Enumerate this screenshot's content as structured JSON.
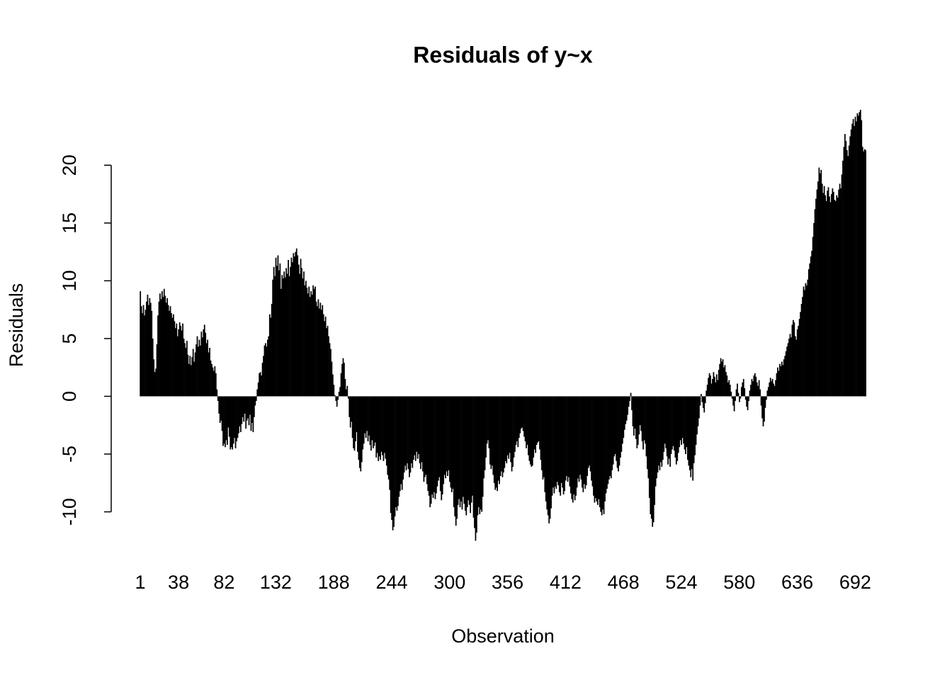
{
  "chart_data": {
    "type": "bar",
    "title": "Residuals of y~x",
    "x_label": "Observation",
    "y_label": "Residuals",
    "color": "#000000",
    "xlim": [
      0.5,
      702.5
    ],
    "xticks": [
      1,
      38,
      82,
      132,
      188,
      244,
      300,
      356,
      412,
      468,
      524,
      580,
      636,
      692
    ],
    "ylim": [
      -12.6,
      24.8
    ],
    "yticks": [
      -10,
      -5,
      0,
      5,
      10,
      15,
      20
    ],
    "x": [
      1,
      2,
      3,
      4,
      5,
      6,
      7,
      8,
      9,
      10,
      11,
      12,
      13,
      14,
      15,
      16,
      17,
      18,
      19,
      20,
      21,
      22,
      23,
      24,
      25,
      26,
      27,
      28,
      29,
      30,
      31,
      32,
      33,
      34,
      35,
      36,
      37,
      38,
      39,
      40,
      41,
      42,
      43,
      44,
      45,
      46,
      47,
      48,
      49,
      50,
      51,
      52,
      53,
      54,
      55,
      56,
      57,
      58,
      59,
      60,
      61,
      62,
      63,
      64,
      65,
      66,
      67,
      68,
      69,
      70,
      71,
      72,
      73,
      74,
      75,
      76,
      77,
      78,
      79,
      80,
      81,
      82,
      83,
      84,
      85,
      86,
      87,
      88,
      89,
      90,
      91,
      92,
      93,
      94,
      95,
      96,
      97,
      98,
      99,
      100,
      101,
      102,
      103,
      104,
      105,
      106,
      107,
      108,
      109,
      110,
      111,
      112,
      113,
      114,
      115,
      116,
      117,
      118,
      119,
      120,
      121,
      122,
      123,
      124,
      125,
      126,
      127,
      128,
      129,
      130,
      131,
      132,
      133,
      134,
      135,
      136,
      137,
      138,
      139,
      140,
      141,
      142,
      143,
      144,
      145,
      146,
      147,
      148,
      149,
      150,
      151,
      152,
      153,
      154,
      155,
      156,
      157,
      158,
      159,
      160,
      161,
      162,
      163,
      164,
      165,
      166,
      167,
      168,
      169,
      170,
      171,
      172,
      173,
      174,
      175,
      176,
      177,
      178,
      179,
      180,
      181,
      182,
      183,
      184,
      185,
      186,
      187,
      188,
      189,
      190,
      191,
      192,
      193,
      194,
      195,
      196,
      197,
      198,
      199,
      200,
      201,
      202,
      203,
      204,
      205,
      206,
      207,
      208,
      209,
      210,
      211,
      212,
      213,
      214,
      215,
      216,
      217,
      218,
      219,
      220,
      221,
      222,
      223,
      224,
      225,
      226,
      227,
      228,
      229,
      230,
      231,
      232,
      233,
      234,
      235,
      236,
      237,
      238,
      239,
      240,
      241,
      242,
      243,
      244,
      245,
      246,
      247,
      248,
      249,
      250,
      251,
      252,
      253,
      254,
      255,
      256,
      257,
      258,
      259,
      260,
      261,
      262,
      263,
      264,
      265,
      266,
      267,
      268,
      269,
      270,
      271,
      272,
      273,
      274,
      275,
      276,
      277,
      278,
      279,
      280,
      281,
      282,
      283,
      284,
      285,
      286,
      287,
      288,
      289,
      290,
      291,
      292,
      293,
      294,
      295,
      296,
      297,
      298,
      299,
      300,
      301,
      302,
      303,
      304,
      305,
      306,
      307,
      308,
      309,
      310,
      311,
      312,
      313,
      314,
      315,
      316,
      317,
      318,
      319,
      320,
      321,
      322,
      323,
      324,
      325,
      326,
      327,
      328,
      329,
      330,
      331,
      332,
      333,
      334,
      335,
      336,
      337,
      338,
      339,
      340,
      341,
      342,
      343,
      344,
      345,
      346,
      347,
      348,
      349,
      350,
      351,
      352,
      353,
      354,
      355,
      356,
      357,
      358,
      359,
      360,
      361,
      362,
      363,
      364,
      365,
      366,
      367,
      368,
      369,
      370,
      371,
      372,
      373,
      374,
      375,
      376,
      377,
      378,
      379,
      380,
      381,
      382,
      383,
      384,
      385,
      386,
      387,
      388,
      389,
      390,
      391,
      392,
      393,
      394,
      395,
      396,
      397,
      398,
      399,
      400,
      401,
      402,
      403,
      404,
      405,
      406,
      407,
      408,
      409,
      410,
      411,
      412,
      413,
      414,
      415,
      416,
      417,
      418,
      419,
      420,
      421,
      422,
      423,
      424,
      425,
      426,
      427,
      428,
      429,
      430,
      431,
      432,
      433,
      434,
      435,
      436,
      437,
      438,
      439,
      440,
      441,
      442,
      443,
      444,
      445,
      446,
      447,
      448,
      449,
      450,
      451,
      452,
      453,
      454,
      455,
      456,
      457,
      458,
      459,
      460,
      461,
      462,
      463,
      464,
      465,
      466,
      467,
      468,
      469,
      470,
      471,
      472,
      473,
      474,
      475,
      476,
      477,
      478,
      479,
      480,
      481,
      482,
      483,
      484,
      485,
      486,
      487,
      488,
      489,
      490,
      491,
      492,
      493,
      494,
      495,
      496,
      497,
      498,
      499,
      500,
      501,
      502,
      503,
      504,
      505,
      506,
      507,
      508,
      509,
      510,
      511,
      512,
      513,
      514,
      515,
      516,
      517,
      518,
      519,
      520,
      521,
      522,
      523,
      524,
      525,
      526,
      527,
      528,
      529,
      530,
      531,
      532,
      533,
      534,
      535,
      536,
      537,
      538,
      539,
      540,
      541,
      542,
      543,
      544,
      545,
      546,
      547,
      548,
      549,
      550,
      551,
      552,
      553,
      554,
      555,
      556,
      557,
      558,
      559,
      560,
      561,
      562,
      563,
      564,
      565,
      566,
      567,
      568,
      569,
      570,
      571,
      572,
      573,
      574,
      575,
      576,
      577,
      578,
      579,
      580,
      581,
      582,
      583,
      584,
      585,
      586,
      587,
      588,
      589,
      590,
      591,
      592,
      593,
      594,
      595,
      596,
      597,
      598,
      599,
      600,
      601,
      602,
      603,
      604,
      605,
      606,
      607,
      608,
      609,
      610,
      611,
      612,
      613,
      614,
      615,
      616,
      617,
      618,
      619,
      620,
      621,
      622,
      623,
      624,
      625,
      626,
      627,
      628,
      629,
      630,
      631,
      632,
      633,
      634,
      635,
      636,
      637,
      638,
      639,
      640,
      641,
      642,
      643,
      644,
      645,
      646,
      647,
      648,
      649,
      650,
      651,
      652,
      653,
      654,
      655,
      656,
      657,
      658,
      659,
      660,
      661,
      662,
      663,
      664,
      665,
      666,
      667,
      668,
      669,
      670,
      671,
      672,
      673,
      674,
      675,
      676,
      677,
      678,
      679,
      680,
      681,
      682,
      683,
      684,
      685,
      686,
      687,
      688,
      689,
      690,
      691,
      692,
      693,
      694,
      695,
      696,
      697,
      698,
      699,
      700,
      701,
      702
    ],
    "values": [
      9.1,
      7.8,
      7.2,
      7.9,
      7.0,
      7.5,
      8.2,
      8.8,
      7.9,
      8.5,
      8.1,
      7.4,
      5.0,
      3.2,
      2.1,
      2.4,
      4.5,
      7.0,
      8.2,
      8.9,
      8.4,
      9.1,
      8.6,
      9.3,
      8.7,
      8.1,
      8.5,
      7.9,
      7.4,
      7.8,
      7.2,
      6.8,
      7.1,
      6.5,
      5.9,
      6.3,
      5.2,
      5.8,
      6.4,
      6.1,
      5.7,
      6.3,
      5.0,
      4.6,
      4.2,
      4.8,
      3.6,
      2.8,
      3.5,
      2.7,
      3.4,
      4.1,
      3.0,
      3.8,
      4.5,
      5.2,
      4.3,
      4.9,
      4.4,
      5.6,
      5.1,
      5.8,
      6.2,
      5.5,
      4.6,
      4.9,
      3.8,
      4.2,
      3.1,
      2.8,
      2.5,
      2.2,
      2.6,
      2.0,
      0.6,
      -0.4,
      -1.5,
      -2.3,
      -2.1,
      -3.0,
      -4.3,
      -4.1,
      -4.4,
      -3.8,
      -4.2,
      -2.7,
      -3.5,
      -4.6,
      -4.4,
      -4.6,
      -4.1,
      -3.6,
      -4.5,
      -3.9,
      -3.6,
      -3.2,
      -2.6,
      -3.1,
      -2.4,
      -1.8,
      -2.2,
      -1.5,
      -2.8,
      -2.1,
      -1.9,
      -2.5,
      -1.6,
      -3.0,
      -2.3,
      -3.1,
      -1.8,
      -0.8,
      -0.4,
      0.6,
      1.2,
      2.0,
      2.1,
      1.8,
      2.9,
      3.5,
      4.4,
      4.6,
      4.3,
      4.9,
      5.2,
      7.1,
      6.8,
      8.0,
      10.1,
      11.2,
      10.4,
      12.0,
      11.3,
      12.2,
      10.9,
      11.5,
      9.3,
      10.5,
      10.2,
      10.8,
      10.3,
      11.1,
      10.6,
      11.8,
      10.4,
      11.2,
      12.0,
      11.6,
      12.4,
      12.1,
      12.5,
      12.8,
      12.2,
      11.4,
      10.6,
      11.9,
      11.1,
      10.2,
      10.8,
      9.6,
      10.0,
      9.4,
      8.9,
      9.5,
      8.6,
      9.1,
      8.8,
      9.6,
      9.3,
      9.5,
      8.2,
      7.8,
      8.4,
      7.6,
      8.1,
      7.5,
      7.9,
      7.1,
      6.5,
      6.9,
      5.9,
      6.1,
      5.2,
      4.6,
      4.1,
      3.0,
      1.9,
      1.0,
      0.1,
      -0.4,
      -0.9,
      -0.3,
      0.4,
      0.8,
      2.0,
      2.8,
      3.3,
      2.9,
      1.5,
      0.6,
      0.9,
      -0.2,
      -1.8,
      -2.7,
      -2.2,
      -3.6,
      -4.5,
      -4.7,
      -3.9,
      -3.1,
      -4.8,
      -5.5,
      -6.2,
      -6.5,
      -5.7,
      -4.6,
      -4.1,
      -3.2,
      -3.6,
      -3.0,
      -3.9,
      -3.4,
      -4.2,
      -4.7,
      -3.8,
      -4.5,
      -4.3,
      -4.0,
      -5.3,
      -4.9,
      -5.6,
      -5.2,
      -5.5,
      -4.8,
      -5.1,
      -5.6,
      -4.9,
      -5.4,
      -6.0,
      -6.8,
      -7.2,
      -8.1,
      -10.1,
      -10.7,
      -11.6,
      -11.3,
      -10.4,
      -9.6,
      -9.9,
      -9.5,
      -8.7,
      -8.2,
      -7.6,
      -8.1,
      -7.2,
      -6.6,
      -6.0,
      -6.4,
      -5.8,
      -6.3,
      -7.0,
      -6.6,
      -5.8,
      -6.2,
      -5.5,
      -5.1,
      -5.6,
      -4.8,
      -5.4,
      -5.0,
      -5.8,
      -6.3,
      -5.7,
      -6.5,
      -7.4,
      -7.0,
      -6.8,
      -7.6,
      -8.2,
      -8.6,
      -9.6,
      -9.3,
      -8.5,
      -8.8,
      -8.3,
      -8.9,
      -8.4,
      -7.8,
      -7.3,
      -7.0,
      -8.2,
      -9.0,
      -8.5,
      -7.6,
      -6.8,
      -7.1,
      -6.5,
      -6.9,
      -6.4,
      -7.4,
      -7.9,
      -8.3,
      -8.0,
      -9.6,
      -10.4,
      -11.2,
      -10.6,
      -9.4,
      -8.9,
      -9.6,
      -9.1,
      -9.8,
      -8.7,
      -9.3,
      -9.9,
      -10.3,
      -9.6,
      -9.0,
      -9.4,
      -10.1,
      -9.2,
      -8.6,
      -10.5,
      -11.4,
      -12.5,
      -11.8,
      -10.3,
      -9.6,
      -10.2,
      -9.8,
      -10.0,
      -8.7,
      -7.1,
      -6.4,
      -5.3,
      -4.1,
      -3.8,
      -4.5,
      -5.9,
      -6.3,
      -6.0,
      -6.8,
      -7.5,
      -8.1,
      -7.9,
      -8.2,
      -7.3,
      -7.6,
      -6.9,
      -6.5,
      -7.0,
      -6.6,
      -6.2,
      -5.6,
      -5.8,
      -5.1,
      -5.4,
      -4.9,
      -5.7,
      -6.5,
      -6.1,
      -5.3,
      -4.8,
      -4.2,
      -3.9,
      -4.4,
      -3.6,
      -3.2,
      -2.8,
      -2.7,
      -3.0,
      -3.5,
      -3.9,
      -4.5,
      -4.2,
      -5.1,
      -5.6,
      -5.9,
      -6.1,
      -6.0,
      -5.3,
      -4.6,
      -4.9,
      -4.2,
      -4.0,
      -3.9,
      -4.6,
      -5.5,
      -6.4,
      -7.2,
      -7.0,
      -8.3,
      -9.1,
      -9.8,
      -10.3,
      -11.0,
      -10.6,
      -9.7,
      -8.6,
      -7.9,
      -8.4,
      -7.8,
      -8.0,
      -7.4,
      -7.7,
      -8.3,
      -8.6,
      -7.5,
      -7.9,
      -8.5,
      -8.2,
      -7.3,
      -6.9,
      -7.4,
      -7.0,
      -7.8,
      -8.4,
      -8.9,
      -9.2,
      -8.5,
      -9.0,
      -8.6,
      -7.9,
      -7.1,
      -7.4,
      -6.8,
      -7.2,
      -7.9,
      -8.3,
      -7.6,
      -8.0,
      -7.7,
      -6.9,
      -6.2,
      -6.0,
      -6.5,
      -7.3,
      -7.8,
      -8.6,
      -9.2,
      -8.8,
      -9.1,
      -9.4,
      -8.9,
      -9.6,
      -10.0,
      -10.3,
      -9.8,
      -10.2,
      -9.1,
      -8.4,
      -8.0,
      -7.6,
      -7.2,
      -6.9,
      -7.1,
      -6.4,
      -5.9,
      -5.2,
      -5.0,
      -5.6,
      -6.2,
      -6.5,
      -6.0,
      -5.3,
      -4.8,
      -4.1,
      -3.6,
      -2.9,
      -2.4,
      -2.1,
      -1.6,
      -0.9,
      -0.4,
      0.3,
      -1.2,
      -2.6,
      -3.4,
      -2.8,
      -3.7,
      -4.5,
      -4.2,
      -3.3,
      -2.5,
      -3.0,
      -3.9,
      -4.6,
      -3.8,
      -4.1,
      -5.2,
      -6.3,
      -7.1,
      -8.8,
      -10.2,
      -10.6,
      -11.3,
      -10.9,
      -9.4,
      -7.8,
      -7.1,
      -6.6,
      -6.0,
      -6.4,
      -5.7,
      -6.1,
      -5.5,
      -4.8,
      -4.1,
      -4.5,
      -5.2,
      -5.9,
      -5.4,
      -6.1,
      -5.0,
      -4.6,
      -4.3,
      -4.7,
      -5.3,
      -5.9,
      -5.6,
      -4.9,
      -4.4,
      -3.8,
      -4.2,
      -3.6,
      -4.1,
      -4.6,
      -5.0,
      -4.4,
      -5.5,
      -6.0,
      -6.4,
      -7.0,
      -6.3,
      -7.3,
      -5.8,
      -5.1,
      -4.2,
      -3.3,
      -2.6,
      -1.9,
      -0.8,
      0.2,
      -0.5,
      -1.0,
      -1.4,
      -0.6,
      0.5,
      1.0,
      1.6,
      2.0,
      1.8,
      1.1,
      1.5,
      2.1,
      1.7,
      1.2,
      1.9,
      1.4,
      2.3,
      2.8,
      3.3,
      3.0,
      3.2,
      2.5,
      2.7,
      2.1,
      1.8,
      1.2,
      1.4,
      1.0,
      0.4,
      -0.2,
      -0.8,
      -1.3,
      -0.4,
      0.6,
      1.1,
      0.3,
      -0.5,
      -0.2,
      0.8,
      1.2,
      1.5,
      0.7,
      -0.3,
      -0.9,
      -1.2,
      -0.4,
      0.5,
      1.0,
      1.5,
      1.3,
      1.8,
      2.0,
      1.7,
      1.2,
      0.9,
      1.4,
      0.6,
      -0.8,
      -1.9,
      -2.6,
      -2.2,
      -1.0,
      -0.3,
      0.5,
      0.8,
      1.2,
      1.6,
      1.3,
      1.5,
      1.1,
      0.9,
      1.4,
      2.0,
      2.5,
      2.2,
      2.8,
      2.6,
      3.0,
      2.7,
      3.2,
      3.5,
      3.9,
      4.3,
      4.6,
      5.0,
      5.4,
      5.1,
      6.2,
      6.6,
      6.4,
      5.2,
      4.9,
      5.8,
      6.1,
      6.7,
      7.3,
      8.0,
      8.6,
      9.5,
      9.2,
      9.8,
      9.6,
      10.1,
      11.0,
      11.5,
      12.1,
      12.6,
      13.8,
      15.0,
      16.2,
      17.1,
      17.9,
      18.6,
      19.8,
      19.3,
      19.6,
      18.4,
      17.6,
      18.2,
      17.4,
      16.9,
      17.8,
      18.1,
      17.3,
      16.8,
      17.5,
      18.0,
      17.7,
      17.0,
      16.9,
      17.4,
      17.2,
      17.9,
      18.4,
      18.0,
      19.2,
      20.4,
      21.6,
      22.7,
      22.1,
      21.3,
      20.8,
      21.7,
      22.5,
      23.1,
      23.6,
      24.0,
      23.4,
      24.2,
      23.8,
      24.5,
      24.3,
      24.6,
      24.8,
      23.9,
      21.6,
      21.2,
      21.4,
      21.3
    ]
  }
}
